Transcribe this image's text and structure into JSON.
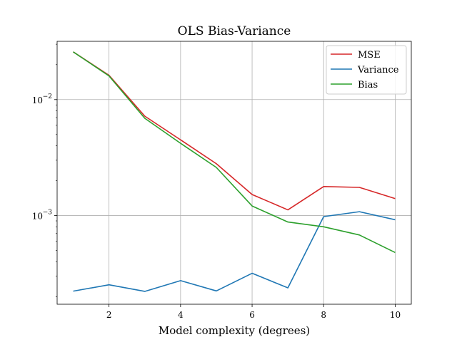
{
  "chart_data": {
    "type": "line",
    "title": "OLS Bias-Variance",
    "xlabel": "Model complexity (degrees)",
    "ylabel": "",
    "x": [
      1,
      2,
      3,
      4,
      5,
      6,
      7,
      8,
      9,
      10
    ],
    "xlim": [
      0.55,
      10.45
    ],
    "xticks": [
      2,
      4,
      6,
      8,
      10
    ],
    "yscale": "log",
    "ylim": [
      0.000172,
      0.0318
    ],
    "yticks": [
      {
        "value": 0.01,
        "base": "10",
        "exp": "−2"
      },
      {
        "value": 0.001,
        "base": "10",
        "exp": "−3"
      }
    ],
    "grid": true,
    "legend_position": "top-right",
    "series": [
      {
        "name": "MSE",
        "color": "#d62728",
        "values": [
          0.0258,
          0.0162,
          0.0072,
          0.0045,
          0.0028,
          0.00152,
          0.00112,
          0.00178,
          0.00175,
          0.0014
        ]
      },
      {
        "name": "Variance",
        "color": "#1f77b4",
        "values": [
          0.000223,
          0.000253,
          0.000222,
          0.000275,
          0.000224,
          0.000318,
          0.000238,
          0.00098,
          0.00108,
          0.00092
        ]
      },
      {
        "name": "Bias",
        "color": "#2ca02c",
        "values": [
          0.0258,
          0.016,
          0.0069,
          0.0042,
          0.0026,
          0.00121,
          0.00088,
          0.0008,
          0.00068,
          0.00048
        ]
      }
    ]
  }
}
